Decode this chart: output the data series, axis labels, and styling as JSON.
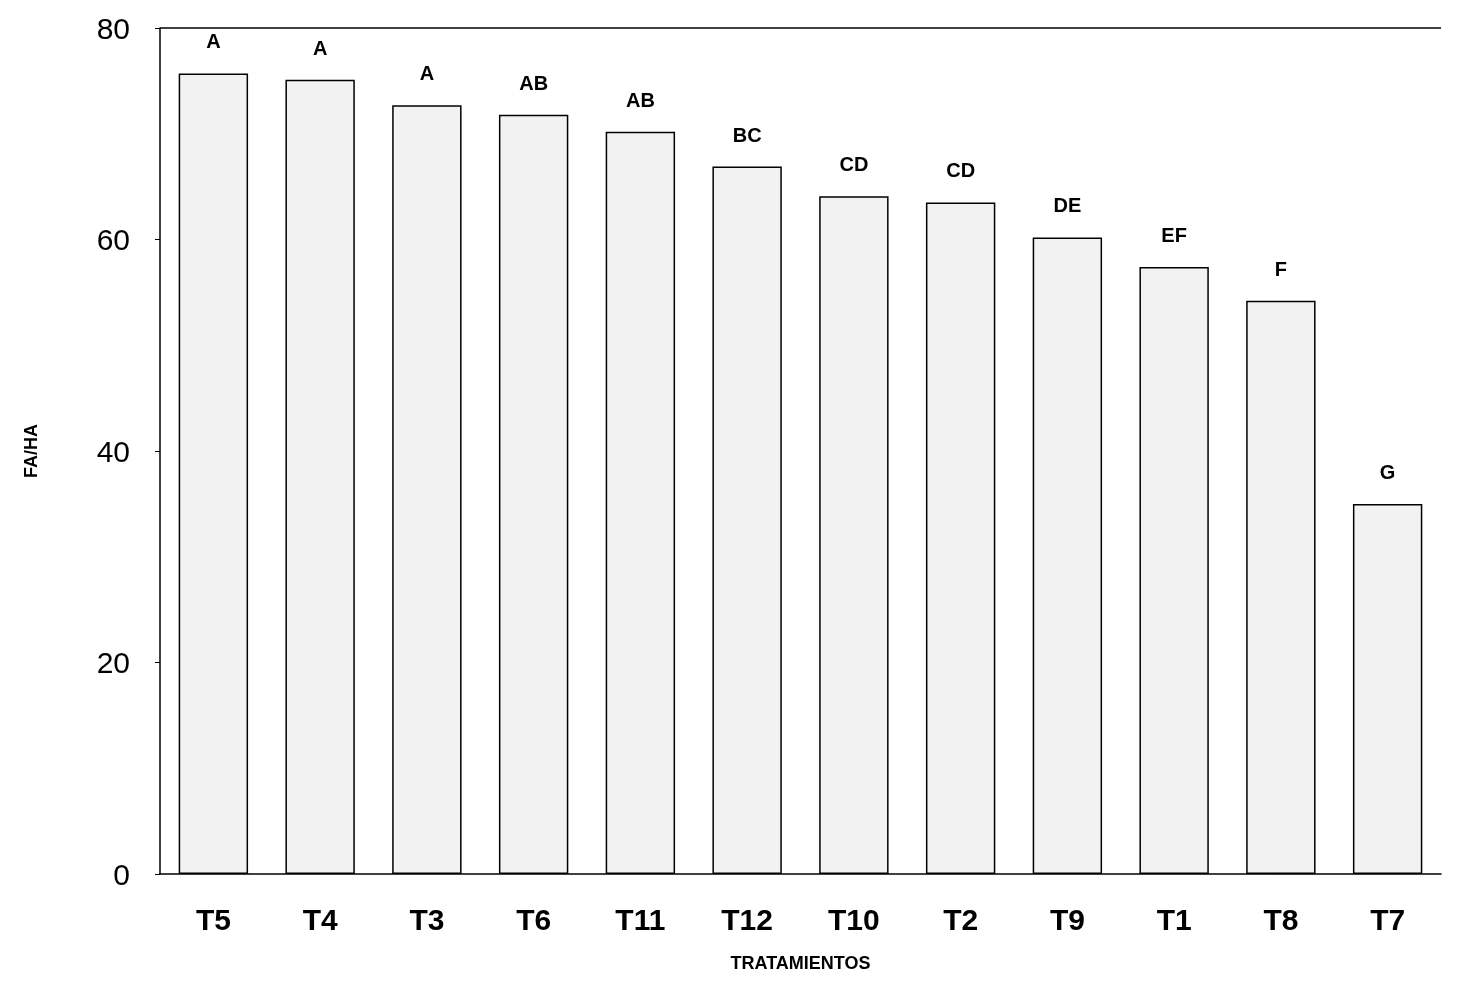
{
  "chart_data": {
    "type": "bar",
    "xlabel": "TRATAMIENTOS",
    "ylabel": "FA/HA",
    "categories": [
      "T5",
      "T4",
      "T3",
      "T6",
      "T11",
      "T12",
      "T10",
      "T2",
      "T9",
      "T1",
      "T8",
      "T7"
    ],
    "values": [
      75.7,
      75.1,
      72.7,
      71.8,
      70.2,
      66.9,
      64.1,
      63.5,
      60.2,
      57.4,
      54.2,
      35.0
    ],
    "color": "#f2f2f2",
    "ylim": [
      0,
      80
    ],
    "yticks": [
      0,
      20,
      40,
      60,
      80
    ],
    "grid": false,
    "value_labels": [
      "A",
      "A",
      "A",
      "AB",
      "AB",
      "BC",
      "CD",
      "CD",
      "DE",
      "EF",
      "F",
      "G"
    ]
  }
}
